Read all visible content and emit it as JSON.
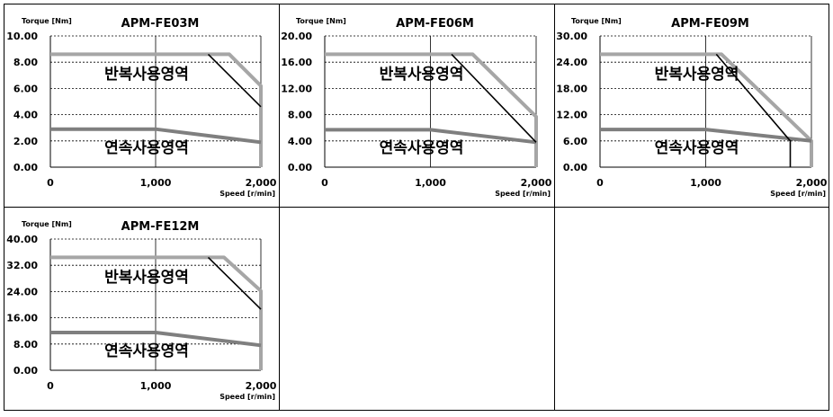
{
  "chart_data": [
    {
      "type": "line",
      "title": "APM-FE03M",
      "ylabel": "Torque [Nm]",
      "xlabel": "Speed [r/min]",
      "xlim": [
        0,
        2000
      ],
      "ylim": [
        0,
        10
      ],
      "x_ticks": [
        "0",
        "1,000",
        "2,000"
      ],
      "y_ticks": [
        "0.00",
        "2.00",
        "4.00",
        "6.00",
        "8.00",
        "10.00"
      ],
      "region_labels": [
        "반복사용영역",
        "연속사용영역"
      ],
      "series": [
        {
          "role": "intermittent",
          "x": [
            0,
            1700,
            2000,
            2000
          ],
          "y": [
            8.6,
            8.6,
            6.2,
            0
          ]
        },
        {
          "role": "continuous",
          "x": [
            0,
            1000,
            2000
          ],
          "y": [
            2.9,
            2.9,
            1.9
          ]
        },
        {
          "role": "boundary",
          "x": [
            1500,
            2000
          ],
          "y": [
            8.6,
            4.6
          ]
        }
      ]
    },
    {
      "type": "line",
      "title": "APM-FE06M",
      "ylabel": "Torque [Nm]",
      "xlabel": "Speed [r/min]",
      "xlim": [
        0,
        2000
      ],
      "ylim": [
        0,
        20
      ],
      "x_ticks": [
        "0",
        "1,000",
        "2,000"
      ],
      "y_ticks": [
        "0.00",
        "4.00",
        "8.00",
        "12.00",
        "16.00",
        "20.00"
      ],
      "region_labels": [
        "반복사용영역",
        "연속사용영역"
      ],
      "series": [
        {
          "role": "intermittent",
          "x": [
            0,
            1400,
            2000,
            2000
          ],
          "y": [
            17.2,
            17.2,
            7.7,
            0
          ]
        },
        {
          "role": "continuous",
          "x": [
            0,
            1000,
            2000
          ],
          "y": [
            5.7,
            5.7,
            3.8
          ]
        },
        {
          "role": "boundary",
          "x": [
            1200,
            2000
          ],
          "y": [
            17.2,
            3.8
          ]
        }
      ]
    },
    {
      "type": "line",
      "title": "APM-FE09M",
      "ylabel": "Torque [Nm]",
      "xlabel": "Speed [r/min]",
      "xlim": [
        0,
        2000
      ],
      "ylim": [
        0,
        30
      ],
      "x_ticks": [
        "0",
        "1,000",
        "2,000"
      ],
      "y_ticks": [
        "0.00",
        "6.00",
        "12.00",
        "18.00",
        "24.00",
        "30.00"
      ],
      "region_labels": [
        "반복사용영역",
        "연속사용영역"
      ],
      "series": [
        {
          "role": "intermittent",
          "x": [
            0,
            1150,
            2000,
            2000
          ],
          "y": [
            25.8,
            25.8,
            6.0,
            0
          ]
        },
        {
          "role": "continuous",
          "x": [
            0,
            1000,
            2000
          ],
          "y": [
            8.6,
            8.6,
            6.0
          ]
        },
        {
          "role": "boundary",
          "x": [
            1100,
            1800,
            1800
          ],
          "y": [
            25.8,
            6.0,
            0
          ]
        }
      ]
    },
    {
      "type": "line",
      "title": "APM-FE12M",
      "ylabel": "Torque [Nm]",
      "xlabel": "Speed [r/min]",
      "xlim": [
        0,
        2000
      ],
      "ylim": [
        0,
        40
      ],
      "x_ticks": [
        "0",
        "1,000",
        "2,000"
      ],
      "y_ticks": [
        "0.00",
        "8.00",
        "16.00",
        "24.00",
        "32.00",
        "40.00"
      ],
      "region_labels": [
        "반복사용영역",
        "연속사용영역"
      ],
      "series": [
        {
          "role": "intermittent",
          "x": [
            0,
            1650,
            2000,
            2000
          ],
          "y": [
            34.4,
            34.4,
            24.2,
            0
          ]
        },
        {
          "role": "continuous",
          "x": [
            0,
            1000,
            2000
          ],
          "y": [
            11.5,
            11.5,
            7.6
          ]
        },
        {
          "role": "boundary",
          "x": [
            1500,
            2000
          ],
          "y": [
            34.4,
            18.6
          ]
        }
      ]
    }
  ],
  "colors": {
    "intermittent": "#a6a6a6",
    "continuous": "#7f7f7f",
    "boundary": "#000000",
    "grid": "#000000"
  }
}
